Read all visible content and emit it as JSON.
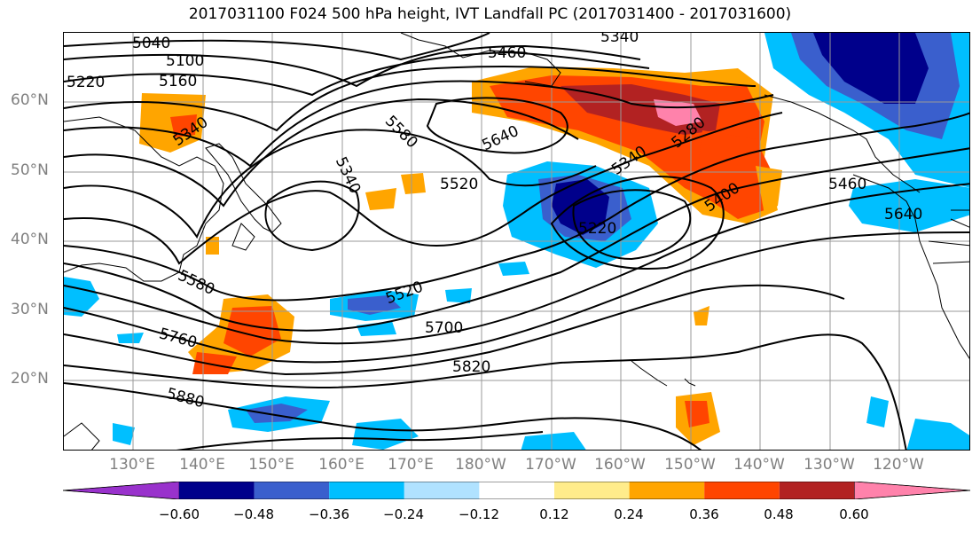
{
  "title": "2017031100 F024 500 hPa height, IVT Landfall PC (2017031400 - 2017031600)",
  "latitude_labels": [
    "60°N",
    "50°N",
    "40°N",
    "30°N",
    "20°N"
  ],
  "longitude_labels": [
    "130°E",
    "140°E",
    "150°E",
    "160°E",
    "170°E",
    "180°W",
    "170°W",
    "160°W",
    "150°W",
    "140°W",
    "130°W",
    "120°W"
  ],
  "contour_labels": [
    "5040",
    "5100",
    "5160",
    "5220",
    "5340",
    "5460",
    "5340",
    "5580",
    "5640",
    "5520",
    "5340",
    "5280",
    "5340",
    "5400",
    "5460",
    "5640",
    "5220",
    "5580",
    "5520",
    "5700",
    "5760",
    "5820",
    "5880"
  ],
  "colorbar": {
    "ticks": [
      "−0.60",
      "−0.48",
      "−0.36",
      "−0.24",
      "−0.12",
      "0.12",
      "0.24",
      "0.36",
      "0.48",
      "0.60"
    ],
    "colors": [
      "#9932cc",
      "#00008b",
      "#3a5fcd",
      "#00bfff",
      "#b0e2ff",
      "#ffffff",
      "#ffec8b",
      "#ffa500",
      "#ff4500",
      "#b22222",
      "#ff82ab"
    ]
  }
}
